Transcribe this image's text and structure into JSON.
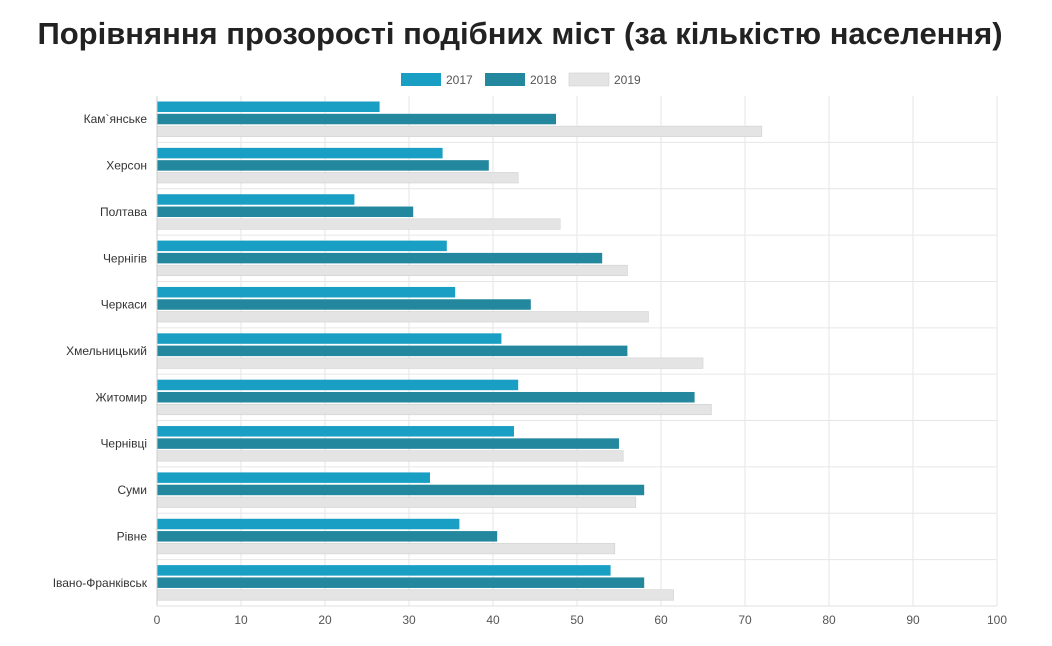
{
  "chart_data": {
    "type": "bar",
    "orientation": "horizontal",
    "title": "Порівняння прозорості подібних міст (за кількістю населення)",
    "xlabel": "",
    "ylabel": "",
    "xlim": [
      0,
      100
    ],
    "x_ticks": [
      "0",
      "10",
      "20",
      "30",
      "40",
      "50",
      "60",
      "70",
      "80",
      "90",
      "100"
    ],
    "grid": true,
    "legend_position": "top",
    "categories": [
      "Кам`янське",
      "Херсон",
      "Полтава",
      "Чернігів",
      "Черкаси",
      "Хмельницький",
      "Житомир",
      "Чернівці",
      "Суми",
      "Рівне",
      "Івано-Франківськ"
    ],
    "series": [
      {
        "name": "2017",
        "color": "#1a9fc4",
        "values": [
          26.5,
          34,
          23.5,
          34.5,
          35.5,
          41,
          43,
          42.5,
          32.5,
          36,
          54
        ]
      },
      {
        "name": "2018",
        "color": "#23879e",
        "values": [
          47.5,
          39.5,
          30.5,
          53,
          44.5,
          56,
          64,
          55,
          58,
          40.5,
          58
        ]
      },
      {
        "name": "2019",
        "color": "#e4e4e4",
        "values": [
          72,
          43,
          48,
          56,
          58.5,
          65,
          66,
          55.5,
          57,
          54.5,
          61.5
        ]
      }
    ]
  }
}
